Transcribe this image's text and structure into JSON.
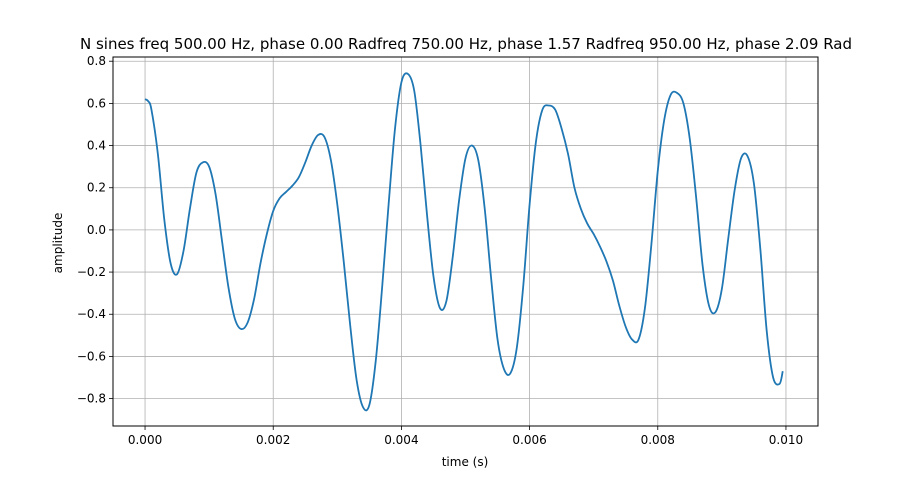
{
  "chart_data": {
    "type": "line",
    "title": "N sines freq 500.00 Hz, phase 0.00 Radfreq 750.00 Hz, phase 1.57 Radfreq 950.00 Hz, phase 2.09 Rad",
    "xlabel": "time (s)",
    "ylabel": "amplitude",
    "xlim": [
      -0.0005,
      0.0105
    ],
    "ylim": [
      -0.93,
      0.82
    ],
    "x_ticks": [
      0.0,
      0.002,
      0.004,
      0.006,
      0.008,
      0.01
    ],
    "x_tick_labels": [
      "0.000",
      "0.002",
      "0.004",
      "0.006",
      "0.008",
      "0.010"
    ],
    "y_ticks": [
      -0.8,
      -0.6,
      -0.4,
      -0.2,
      0.0,
      0.2,
      0.4,
      0.6,
      0.8
    ],
    "y_tick_labels": [
      "−0.8",
      "−0.6",
      "−0.4",
      "−0.2",
      "0.0",
      "0.2",
      "0.4",
      "0.6",
      "0.8"
    ],
    "grid": true,
    "legend": "none",
    "line_color": "#1f77b4",
    "series": [
      {
        "color": "#1f77b4",
        "x": [
          0.0,
          5e-05,
          0.0001,
          0.0002,
          0.0003,
          0.0004,
          0.0005,
          0.0006,
          0.0007,
          0.0008,
          0.0009,
          0.001,
          0.0011,
          0.0012,
          0.0013,
          0.0014,
          0.0015,
          0.0016,
          0.0017,
          0.0018,
          0.0019,
          0.002,
          0.0021,
          0.0022,
          0.0023,
          0.0024,
          0.0025,
          0.0026,
          0.0027,
          0.0028,
          0.0029,
          0.003,
          0.0031,
          0.0032,
          0.0033,
          0.0034,
          0.0035,
          0.0036,
          0.0037,
          0.0038,
          0.0039,
          0.004,
          0.0041,
          0.0042,
          0.0043,
          0.0044,
          0.0045,
          0.0046,
          0.0047,
          0.0048,
          0.0049,
          0.005,
          0.0051,
          0.0052,
          0.0053,
          0.0054,
          0.0055,
          0.0056,
          0.0057,
          0.0058,
          0.0059,
          0.006,
          0.0061,
          0.0062,
          0.0063,
          0.0064,
          0.0065,
          0.0066,
          0.0067,
          0.0068,
          0.0069,
          0.007,
          0.0071,
          0.0072,
          0.0073,
          0.0074,
          0.0075,
          0.0076,
          0.0077,
          0.0078,
          0.0079,
          0.008,
          0.0081,
          0.0082,
          0.0083,
          0.0084,
          0.0085,
          0.0086,
          0.0087,
          0.0088,
          0.0089,
          0.009,
          0.0091,
          0.0092,
          0.0093,
          0.0094,
          0.0095,
          0.0096,
          0.0097,
          0.0098,
          0.0099,
          0.00995
        ],
        "y": [
          0.62,
          0.61,
          0.57,
          0.36,
          0.05,
          -0.16,
          -0.21,
          -0.1,
          0.1,
          0.27,
          0.32,
          0.3,
          0.17,
          -0.05,
          -0.27,
          -0.42,
          -0.47,
          -0.44,
          -0.33,
          -0.16,
          -0.02,
          0.09,
          0.15,
          0.18,
          0.21,
          0.25,
          0.32,
          0.4,
          0.45,
          0.44,
          0.33,
          0.12,
          -0.15,
          -0.45,
          -0.71,
          -0.84,
          -0.83,
          -0.62,
          -0.27,
          0.12,
          0.48,
          0.7,
          0.74,
          0.66,
          0.4,
          0.07,
          -0.22,
          -0.37,
          -0.34,
          -0.13,
          0.14,
          0.34,
          0.4,
          0.33,
          0.1,
          -0.23,
          -0.52,
          -0.66,
          -0.68,
          -0.56,
          -0.27,
          0.12,
          0.42,
          0.57,
          0.59,
          0.57,
          0.48,
          0.36,
          0.2,
          0.1,
          0.03,
          -0.02,
          -0.08,
          -0.15,
          -0.24,
          -0.36,
          -0.46,
          -0.52,
          -0.52,
          -0.37,
          -0.07,
          0.28,
          0.52,
          0.64,
          0.65,
          0.6,
          0.43,
          0.15,
          -0.17,
          -0.36,
          -0.39,
          -0.28,
          -0.04,
          0.19,
          0.34,
          0.35,
          0.22,
          -0.09,
          -0.48,
          -0.7,
          -0.73,
          -0.67
        ]
      }
    ]
  }
}
